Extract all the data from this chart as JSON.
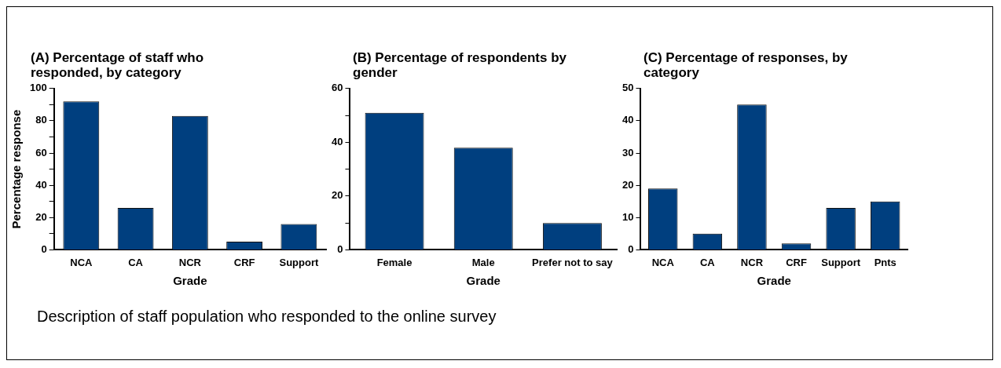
{
  "chart_data": [
    {
      "type": "bar",
      "title": "(A) Percentage of staff who responded, by category",
      "xlabel": "Grade",
      "ylabel": "Percentage response",
      "categories": [
        "NCA",
        "CA",
        "NCR",
        "CRF",
        "Support"
      ],
      "values": [
        92,
        26,
        83,
        5,
        16
      ],
      "color": "#003f7f",
      "ylim": [
        0,
        100
      ],
      "yticks": [
        0,
        {
          "value": 10,
          "label": null
        },
        20,
        {
          "value": 30,
          "label": null
        },
        40,
        {
          "value": 50,
          "label": null
        },
        60,
        {
          "value": 70,
          "label": null
        },
        80,
        {
          "value": 90,
          "label": null
        },
        100
      ],
      "annotations": [
        "Description of staff population who responded to the online survey"
      ]
    },
    {
      "type": "bar",
      "title": "(B) Percentage of respondents by gender",
      "xlabel": "Grade",
      "categories": [
        "Female",
        "Male",
        "Prefer not to say"
      ],
      "values": [
        51,
        38,
        10
      ],
      "color": "#003f7f",
      "ylim": [
        0,
        60
      ],
      "yticks": [
        0,
        {
          "value": 10,
          "label": null
        },
        20,
        {
          "value": 30,
          "label": null
        },
        40,
        {
          "value": 50,
          "label": null
        },
        60
      ]
    },
    {
      "type": "bar",
      "title": "(C) Percentage of responses, by category",
      "xlabel": "Grade",
      "categories": [
        "NCA",
        "CA",
        "NCR",
        "CRF",
        "Support",
        "Pnts"
      ],
      "values": [
        19,
        5,
        45,
        2,
        13,
        15
      ],
      "color": "#003f7f",
      "ylim": [
        0,
        50
      ],
      "yticks": [
        0,
        10,
        20,
        30,
        40,
        50
      ]
    }
  ]
}
